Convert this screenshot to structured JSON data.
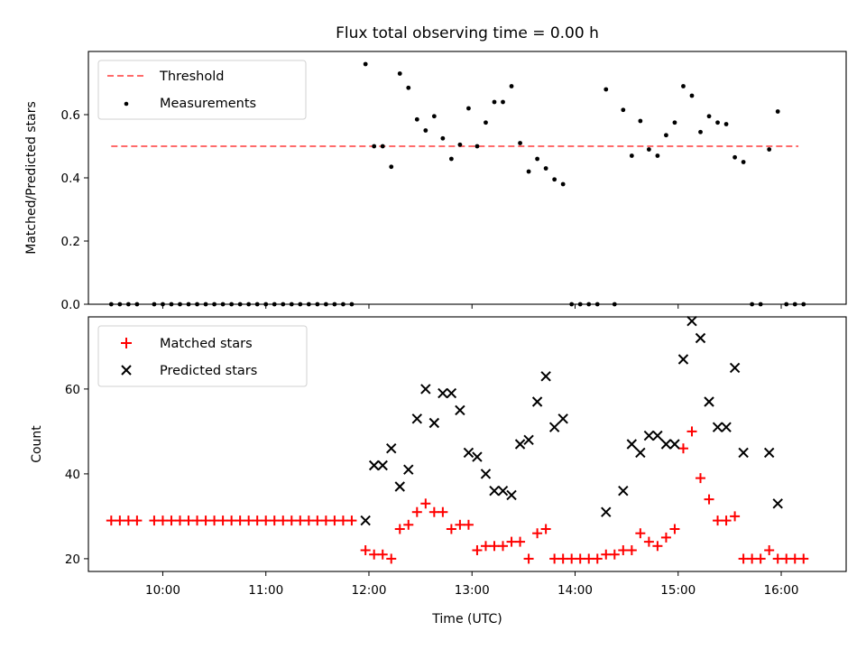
{
  "chart_data": [
    {
      "type": "scatter",
      "title": "Flux total observing time = 0.00 h",
      "xlabel": "",
      "ylabel": "Matched/Predicted stars",
      "ylim": [
        0,
        0.8
      ],
      "yticks": [
        "0.0",
        "0.2",
        "0.4",
        "0.6"
      ],
      "xticks": [
        "10:00",
        "11:00",
        "12:00",
        "13:00",
        "14:00",
        "15:00",
        "16:00"
      ],
      "legend": {
        "placement": "top-left",
        "entries": [
          "Threshold",
          "Measurements"
        ]
      },
      "threshold": {
        "name": "Threshold",
        "value": 0.5,
        "x_range": [
          "09:30",
          "16:10"
        ],
        "color": "#ff6b6b"
      },
      "series": [
        {
          "name": "Measurements",
          "color": "#000000",
          "points": [
            [
              "09:30",
              0
            ],
            [
              "09:35",
              0
            ],
            [
              "09:40",
              0
            ],
            [
              "09:45",
              0
            ],
            [
              "09:55",
              0
            ],
            [
              "10:00",
              0
            ],
            [
              "10:05",
              0
            ],
            [
              "10:10",
              0
            ],
            [
              "10:15",
              0
            ],
            [
              "10:20",
              0
            ],
            [
              "10:25",
              0
            ],
            [
              "10:30",
              0
            ],
            [
              "10:35",
              0
            ],
            [
              "10:40",
              0
            ],
            [
              "10:45",
              0
            ],
            [
              "10:50",
              0
            ],
            [
              "10:55",
              0
            ],
            [
              "11:00",
              0
            ],
            [
              "11:05",
              0
            ],
            [
              "11:10",
              0
            ],
            [
              "11:15",
              0
            ],
            [
              "11:20",
              0
            ],
            [
              "11:25",
              0
            ],
            [
              "11:30",
              0
            ],
            [
              "11:35",
              0
            ],
            [
              "11:40",
              0
            ],
            [
              "11:45",
              0
            ],
            [
              "11:50",
              0
            ],
            [
              "11:58",
              0.76
            ],
            [
              "12:03",
              0.5
            ],
            [
              "12:08",
              0.5
            ],
            [
              "12:13",
              0.435
            ],
            [
              "12:18",
              0.73
            ],
            [
              "12:23",
              0.685
            ],
            [
              "12:28",
              0.585
            ],
            [
              "12:33",
              0.55
            ],
            [
              "12:38",
              0.595
            ],
            [
              "12:43",
              0.525
            ],
            [
              "12:48",
              0.46
            ],
            [
              "12:53",
              0.505
            ],
            [
              "12:58",
              0.62
            ],
            [
              "13:03",
              0.5
            ],
            [
              "13:08",
              0.575
            ],
            [
              "13:13",
              0.64
            ],
            [
              "13:18",
              0.64
            ],
            [
              "13:23",
              0.69
            ],
            [
              "13:28",
              0.51
            ],
            [
              "13:33",
              0.42
            ],
            [
              "13:38",
              0.46
            ],
            [
              "13:43",
              0.43
            ],
            [
              "13:48",
              0.395
            ],
            [
              "13:53",
              0.38
            ],
            [
              "13:58",
              0
            ],
            [
              "14:03",
              0
            ],
            [
              "14:08",
              0
            ],
            [
              "14:13",
              0
            ],
            [
              "14:18",
              0.68
            ],
            [
              "14:23",
              0
            ],
            [
              "14:28",
              0.615
            ],
            [
              "14:33",
              0.47
            ],
            [
              "14:38",
              0.58
            ],
            [
              "14:43",
              0.49
            ],
            [
              "14:48",
              0.47
            ],
            [
              "14:53",
              0.535
            ],
            [
              "14:58",
              0.575
            ],
            [
              "15:03",
              0.69
            ],
            [
              "15:08",
              0.66
            ],
            [
              "15:13",
              0.545
            ],
            [
              "15:18",
              0.595
            ],
            [
              "15:23",
              0.575
            ],
            [
              "15:28",
              0.57
            ],
            [
              "15:33",
              0.465
            ],
            [
              "15:38",
              0.45
            ],
            [
              "15:43",
              0
            ],
            [
              "15:48",
              0
            ],
            [
              "15:53",
              0.49
            ],
            [
              "15:58",
              0.61
            ],
            [
              "16:03",
              0
            ],
            [
              "16:08",
              0
            ],
            [
              "16:13",
              0
            ]
          ]
        }
      ]
    },
    {
      "type": "scatter",
      "title": "",
      "xlabel": "Time (UTC)",
      "ylabel": "Count",
      "ylim": [
        17,
        77
      ],
      "yticks": [
        "20",
        "40",
        "60"
      ],
      "xticks": [
        "10:00",
        "11:00",
        "12:00",
        "13:00",
        "14:00",
        "15:00",
        "16:00"
      ],
      "legend": {
        "placement": "top-left",
        "entries": [
          "Matched stars",
          "Predicted stars"
        ]
      },
      "series": [
        {
          "name": "Matched stars",
          "marker": "plus",
          "color": "#ff0000",
          "points": [
            [
              "09:30",
              29
            ],
            [
              "09:35",
              29
            ],
            [
              "09:40",
              29
            ],
            [
              "09:45",
              29
            ],
            [
              "09:55",
              29
            ],
            [
              "10:00",
              29
            ],
            [
              "10:05",
              29
            ],
            [
              "10:10",
              29
            ],
            [
              "10:15",
              29
            ],
            [
              "10:20",
              29
            ],
            [
              "10:25",
              29
            ],
            [
              "10:30",
              29
            ],
            [
              "10:35",
              29
            ],
            [
              "10:40",
              29
            ],
            [
              "10:45",
              29
            ],
            [
              "10:50",
              29
            ],
            [
              "10:55",
              29
            ],
            [
              "11:00",
              29
            ],
            [
              "11:05",
              29
            ],
            [
              "11:10",
              29
            ],
            [
              "11:15",
              29
            ],
            [
              "11:20",
              29
            ],
            [
              "11:25",
              29
            ],
            [
              "11:30",
              29
            ],
            [
              "11:35",
              29
            ],
            [
              "11:40",
              29
            ],
            [
              "11:45",
              29
            ],
            [
              "11:50",
              29
            ],
            [
              "11:58",
              22
            ],
            [
              "12:03",
              21
            ],
            [
              "12:08",
              21
            ],
            [
              "12:13",
              20
            ],
            [
              "12:18",
              27
            ],
            [
              "12:23",
              28
            ],
            [
              "12:28",
              31
            ],
            [
              "12:33",
              33
            ],
            [
              "12:38",
              31
            ],
            [
              "12:43",
              31
            ],
            [
              "12:48",
              27
            ],
            [
              "12:53",
              28
            ],
            [
              "12:58",
              28
            ],
            [
              "13:03",
              22
            ],
            [
              "13:08",
              23
            ],
            [
              "13:13",
              23
            ],
            [
              "13:18",
              23
            ],
            [
              "13:23",
              24
            ],
            [
              "13:28",
              24
            ],
            [
              "13:33",
              20
            ],
            [
              "13:38",
              26
            ],
            [
              "13:43",
              27
            ],
            [
              "13:48",
              20
            ],
            [
              "13:53",
              20
            ],
            [
              "13:58",
              20
            ],
            [
              "14:03",
              20
            ],
            [
              "14:08",
              20
            ],
            [
              "14:13",
              20
            ],
            [
              "14:18",
              21
            ],
            [
              "14:23",
              21
            ],
            [
              "14:28",
              22
            ],
            [
              "14:33",
              22
            ],
            [
              "14:38",
              26
            ],
            [
              "14:43",
              24
            ],
            [
              "14:48",
              23
            ],
            [
              "14:53",
              25
            ],
            [
              "14:58",
              27
            ],
            [
              "15:03",
              46
            ],
            [
              "15:08",
              50
            ],
            [
              "15:13",
              39
            ],
            [
              "15:18",
              34
            ],
            [
              "15:23",
              29
            ],
            [
              "15:28",
              29
            ],
            [
              "15:33",
              30
            ],
            [
              "15:38",
              20
            ],
            [
              "15:43",
              20
            ],
            [
              "15:48",
              20
            ],
            [
              "15:53",
              22
            ],
            [
              "15:58",
              20
            ],
            [
              "16:03",
              20
            ],
            [
              "16:08",
              20
            ],
            [
              "16:13",
              20
            ]
          ]
        },
        {
          "name": "Predicted stars",
          "marker": "x",
          "color": "#000000",
          "points": [
            [
              "11:58",
              29
            ],
            [
              "12:03",
              42
            ],
            [
              "12:08",
              42
            ],
            [
              "12:13",
              46
            ],
            [
              "12:18",
              37
            ],
            [
              "12:23",
              41
            ],
            [
              "12:28",
              53
            ],
            [
              "12:33",
              60
            ],
            [
              "12:38",
              52
            ],
            [
              "12:43",
              59
            ],
            [
              "12:48",
              59
            ],
            [
              "12:53",
              55
            ],
            [
              "12:58",
              45
            ],
            [
              "13:03",
              44
            ],
            [
              "13:08",
              40
            ],
            [
              "13:13",
              36
            ],
            [
              "13:18",
              36
            ],
            [
              "13:23",
              35
            ],
            [
              "13:28",
              47
            ],
            [
              "13:33",
              48
            ],
            [
              "13:38",
              57
            ],
            [
              "13:43",
              63
            ],
            [
              "13:48",
              51
            ],
            [
              "13:53",
              53
            ],
            [
              "14:18",
              31
            ],
            [
              "14:28",
              36
            ],
            [
              "14:33",
              47
            ],
            [
              "14:38",
              45
            ],
            [
              "14:43",
              49
            ],
            [
              "14:48",
              49
            ],
            [
              "14:53",
              47
            ],
            [
              "14:58",
              47
            ],
            [
              "15:03",
              67
            ],
            [
              "15:08",
              76
            ],
            [
              "15:13",
              72
            ],
            [
              "15:18",
              57
            ],
            [
              "15:23",
              51
            ],
            [
              "15:28",
              51
            ],
            [
              "15:33",
              65
            ],
            [
              "15:38",
              45
            ],
            [
              "15:53",
              45
            ],
            [
              "15:58",
              33
            ]
          ]
        }
      ]
    }
  ]
}
